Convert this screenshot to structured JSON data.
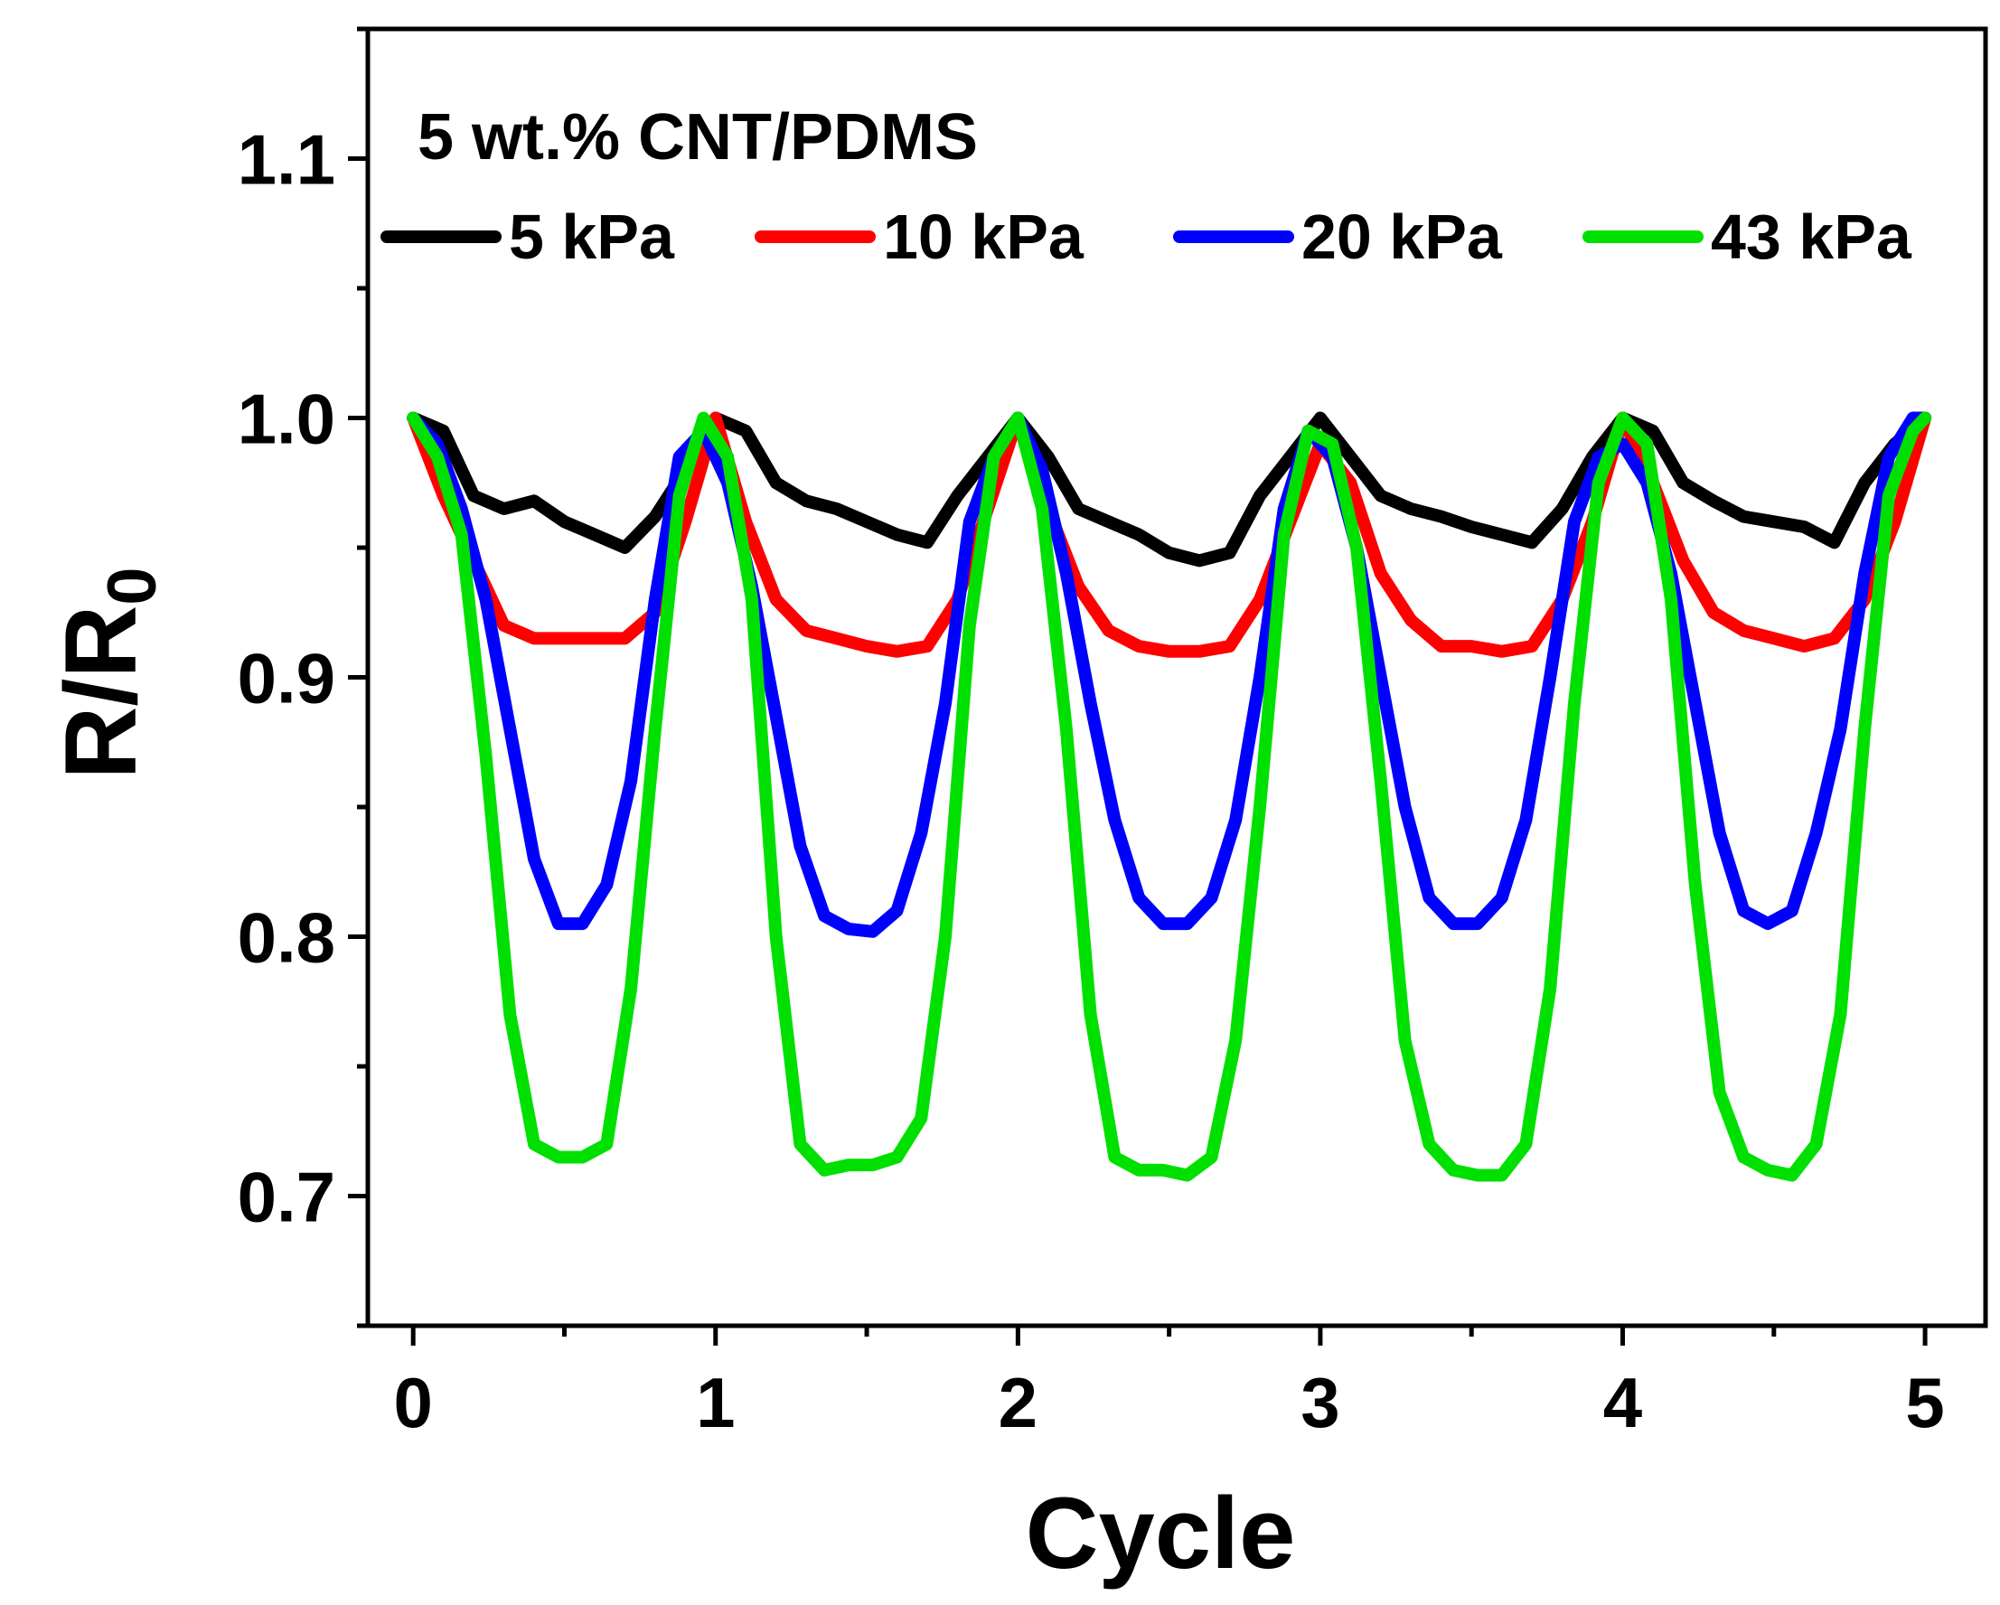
{
  "chart_data": {
    "type": "line",
    "title": "",
    "annotation": "5 wt.% CNT/PDMS",
    "xlabel": "Cycle",
    "ylabel_main": "R/R",
    "ylabel_sub": "0",
    "xlim": [
      -0.15,
      5.2
    ],
    "ylim": [
      0.65,
      1.15
    ],
    "xticks": [
      0,
      1,
      2,
      3,
      4,
      5
    ],
    "xtick_labels": [
      "0",
      "1",
      "2",
      "3",
      "4",
      "5"
    ],
    "yticks": [
      0.7,
      0.8,
      0.9,
      1.0,
      1.1
    ],
    "ytick_labels": [
      "0.7",
      "0.8",
      "0.9",
      "1.0",
      "1.1"
    ],
    "grid": false,
    "legend_position": "top",
    "series": [
      {
        "name": "5 kPa",
        "color": "#000000",
        "x": [
          0,
          0.1,
          0.2,
          0.3,
          0.4,
          0.5,
          0.6,
          0.7,
          0.8,
          0.9,
          1.0,
          1.1,
          1.2,
          1.3,
          1.4,
          1.5,
          1.6,
          1.7,
          1.8,
          1.9,
          2.0,
          2.1,
          2.2,
          2.3,
          2.4,
          2.5,
          2.6,
          2.7,
          2.8,
          2.9,
          3.0,
          3.1,
          3.2,
          3.3,
          3.4,
          3.5,
          3.6,
          3.7,
          3.8,
          3.9,
          4.0,
          4.1,
          4.2,
          4.3,
          4.4,
          4.5,
          4.6,
          4.7,
          4.8,
          4.9,
          5.0
        ],
        "y": [
          1.0,
          0.995,
          0.97,
          0.965,
          0.968,
          0.96,
          0.955,
          0.95,
          0.962,
          0.98,
          1.0,
          0.995,
          0.975,
          0.968,
          0.965,
          0.96,
          0.955,
          0.952,
          0.97,
          0.985,
          1.0,
          0.985,
          0.965,
          0.96,
          0.955,
          0.948,
          0.945,
          0.948,
          0.97,
          0.985,
          1.0,
          0.985,
          0.97,
          0.965,
          0.962,
          0.958,
          0.955,
          0.952,
          0.965,
          0.985,
          1.0,
          0.995,
          0.975,
          0.968,
          0.962,
          0.96,
          0.958,
          0.952,
          0.975,
          0.99,
          1.0
        ]
      },
      {
        "name": "10 kPa",
        "color": "#ff0000",
        "x": [
          0,
          0.1,
          0.2,
          0.3,
          0.4,
          0.5,
          0.6,
          0.7,
          0.8,
          0.9,
          1.0,
          1.1,
          1.2,
          1.3,
          1.4,
          1.5,
          1.6,
          1.7,
          1.8,
          1.9,
          2.0,
          2.1,
          2.2,
          2.3,
          2.4,
          2.5,
          2.6,
          2.7,
          2.8,
          2.9,
          3.0,
          3.1,
          3.2,
          3.3,
          3.4,
          3.5,
          3.6,
          3.7,
          3.8,
          3.9,
          4.0,
          4.1,
          4.2,
          4.3,
          4.4,
          4.5,
          4.6,
          4.7,
          4.8,
          4.9,
          5.0
        ],
        "y": [
          1.0,
          0.97,
          0.945,
          0.92,
          0.915,
          0.915,
          0.915,
          0.915,
          0.925,
          0.96,
          1.0,
          0.96,
          0.93,
          0.918,
          0.915,
          0.912,
          0.91,
          0.912,
          0.93,
          0.965,
          1.0,
          0.965,
          0.935,
          0.918,
          0.912,
          0.91,
          0.91,
          0.912,
          0.93,
          0.96,
          0.99,
          0.975,
          0.94,
          0.922,
          0.912,
          0.912,
          0.91,
          0.912,
          0.93,
          0.96,
          1.0,
          0.975,
          0.945,
          0.925,
          0.918,
          0.915,
          0.912,
          0.915,
          0.93,
          0.96,
          1.0
        ]
      },
      {
        "name": "20 kPa",
        "color": "#0000ff",
        "x": [
          0,
          0.08,
          0.16,
          0.24,
          0.32,
          0.4,
          0.48,
          0.56,
          0.64,
          0.72,
          0.8,
          0.88,
          0.96,
          1.04,
          1.12,
          1.2,
          1.28,
          1.36,
          1.44,
          1.52,
          1.6,
          1.68,
          1.76,
          1.84,
          1.92,
          2.0,
          2.08,
          2.16,
          2.24,
          2.32,
          2.4,
          2.48,
          2.56,
          2.64,
          2.72,
          2.8,
          2.88,
          2.96,
          3.04,
          3.12,
          3.2,
          3.28,
          3.36,
          3.44,
          3.52,
          3.6,
          3.68,
          3.76,
          3.84,
          3.92,
          4.0,
          4.08,
          4.16,
          4.24,
          4.32,
          4.4,
          4.48,
          4.56,
          4.64,
          4.72,
          4.8,
          4.88,
          4.96,
          5.0
        ],
        "y": [
          1.0,
          0.99,
          0.965,
          0.93,
          0.88,
          0.83,
          0.805,
          0.805,
          0.82,
          0.86,
          0.93,
          0.985,
          0.995,
          0.975,
          0.935,
          0.885,
          0.835,
          0.808,
          0.803,
          0.802,
          0.81,
          0.84,
          0.89,
          0.96,
          0.985,
          1.0,
          0.98,
          0.94,
          0.89,
          0.845,
          0.815,
          0.805,
          0.805,
          0.815,
          0.845,
          0.9,
          0.965,
          0.995,
          0.985,
          0.95,
          0.9,
          0.85,
          0.815,
          0.805,
          0.805,
          0.815,
          0.845,
          0.9,
          0.96,
          0.985,
          0.99,
          0.975,
          0.94,
          0.89,
          0.84,
          0.81,
          0.805,
          0.81,
          0.84,
          0.88,
          0.94,
          0.985,
          1.0,
          1.0
        ]
      },
      {
        "name": "43 kPa",
        "color": "#00e000",
        "x": [
          0,
          0.08,
          0.16,
          0.24,
          0.32,
          0.4,
          0.48,
          0.56,
          0.64,
          0.72,
          0.8,
          0.88,
          0.96,
          1.04,
          1.12,
          1.2,
          1.28,
          1.36,
          1.44,
          1.52,
          1.6,
          1.68,
          1.76,
          1.84,
          1.92,
          2.0,
          2.08,
          2.16,
          2.24,
          2.32,
          2.4,
          2.48,
          2.56,
          2.64,
          2.72,
          2.8,
          2.88,
          2.96,
          3.04,
          3.12,
          3.2,
          3.28,
          3.36,
          3.44,
          3.52,
          3.6,
          3.68,
          3.76,
          3.84,
          3.92,
          4.0,
          4.08,
          4.16,
          4.24,
          4.32,
          4.4,
          4.48,
          4.56,
          4.64,
          4.72,
          4.8,
          4.88,
          4.96,
          5.0
        ],
        "y": [
          1.0,
          0.985,
          0.955,
          0.87,
          0.77,
          0.72,
          0.715,
          0.715,
          0.72,
          0.78,
          0.88,
          0.97,
          1.0,
          0.985,
          0.93,
          0.8,
          0.72,
          0.71,
          0.712,
          0.712,
          0.715,
          0.73,
          0.8,
          0.92,
          0.985,
          1.0,
          0.965,
          0.88,
          0.77,
          0.715,
          0.71,
          0.71,
          0.708,
          0.715,
          0.76,
          0.85,
          0.955,
          0.995,
          0.99,
          0.95,
          0.86,
          0.76,
          0.72,
          0.71,
          0.708,
          0.708,
          0.72,
          0.78,
          0.89,
          0.975,
          1.0,
          0.99,
          0.93,
          0.82,
          0.74,
          0.715,
          0.71,
          0.708,
          0.72,
          0.77,
          0.88,
          0.97,
          0.995,
          1.0
        ]
      }
    ]
  }
}
